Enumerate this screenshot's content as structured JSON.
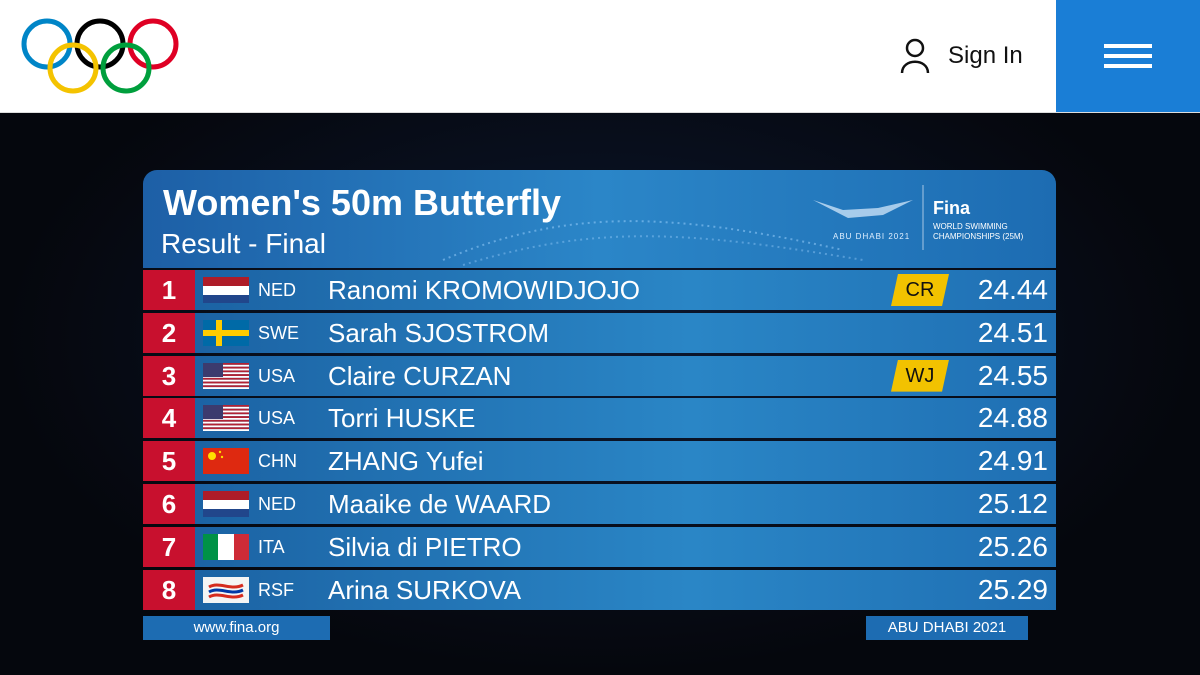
{
  "header": {
    "sign_in": "Sign In"
  },
  "board": {
    "title": "Women's 50m Butterfly",
    "subtitle": "Result - Final",
    "event_logo": "ABU DHABI 2021",
    "fina_logo": "Fina",
    "fina_caption": "WORLD SWIMMING CHAMPIONSHIPS (25M)",
    "rows": [
      {
        "rank": 1,
        "country": "NED",
        "name": "Ranomi KROMOWIDJOJO",
        "record": "CR",
        "time": 24.44
      },
      {
        "rank": 2,
        "country": "SWE",
        "name": "Sarah SJOSTROM",
        "time": 24.51
      },
      {
        "rank": 3,
        "country": "USA",
        "name": "Claire CURZAN",
        "record": "WJ",
        "time": 24.55
      },
      {
        "rank": 4,
        "country": "USA",
        "name": "Torri HUSKE",
        "time": 24.88
      },
      {
        "rank": 5,
        "country": "CHN",
        "name": "ZHANG Yufei",
        "time": 24.91
      },
      {
        "rank": 6,
        "country": "NED",
        "name": "Maaike de WAARD",
        "time": 25.12
      },
      {
        "rank": 7,
        "country": "ITA",
        "name": "Silvia di PIETRO",
        "time": 25.26
      },
      {
        "rank": 8,
        "country": "RSF",
        "name": "Arina SURKOVA",
        "time": 25.29
      }
    ],
    "footer_left": "www.fina.org",
    "footer_right": "ABU DHABI 2021"
  }
}
